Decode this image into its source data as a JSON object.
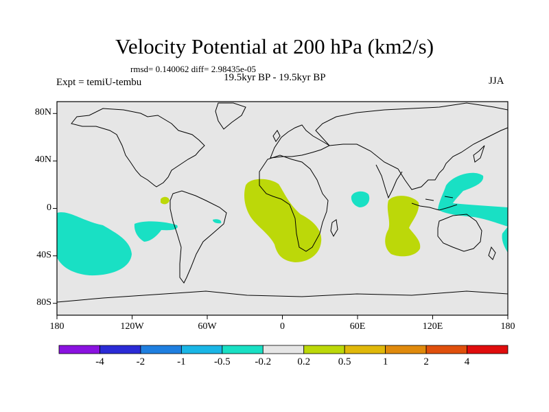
{
  "title": "Velocity Potential at 200 hPa (km2/s)",
  "stats_text": "rmsd= 0.140062 diff= 2.98435e-05",
  "expt_text": "Expt = temiU-tembu",
  "period_text": "19.5kyr BP - 19.5kyr BP",
  "season_text": "JJA",
  "axes": {
    "y_ticks": [
      {
        "label": "80N",
        "lat": 80
      },
      {
        "label": "40N",
        "lat": 40
      },
      {
        "label": "0",
        "lat": 0
      },
      {
        "label": "40S",
        "lat": -40
      },
      {
        "label": "80S",
        "lat": -80
      }
    ],
    "x_ticks": [
      {
        "label": "180",
        "lon": -180
      },
      {
        "label": "120W",
        "lon": -120
      },
      {
        "label": "60W",
        "lon": -60
      },
      {
        "label": "0",
        "lon": 0
      },
      {
        "label": "60E",
        "lon": 60
      },
      {
        "label": "120E",
        "lon": 120
      },
      {
        "label": "180",
        "lon": 180
      }
    ],
    "lon_range": [
      -180,
      180
    ],
    "lat_range": [
      -90,
      90
    ]
  },
  "colorbar": {
    "colors": [
      "#8a12e0",
      "#2b2bd6",
      "#1f7fe0",
      "#1ab6e6",
      "#19e0c4",
      "#e6e6e6",
      "#bcd809",
      "#e0b80a",
      "#e08a0c",
      "#e0500c",
      "#e00d0d"
    ],
    "labels": [
      "-4",
      "-2",
      "-1",
      "-0.5",
      "-0.2",
      "0.2",
      "0.5",
      "1",
      "2",
      "4"
    ]
  },
  "colors": {
    "background": "#e6e6e6",
    "negative_fill": "#19e0c4",
    "positive_fill": "#bcd809"
  }
}
